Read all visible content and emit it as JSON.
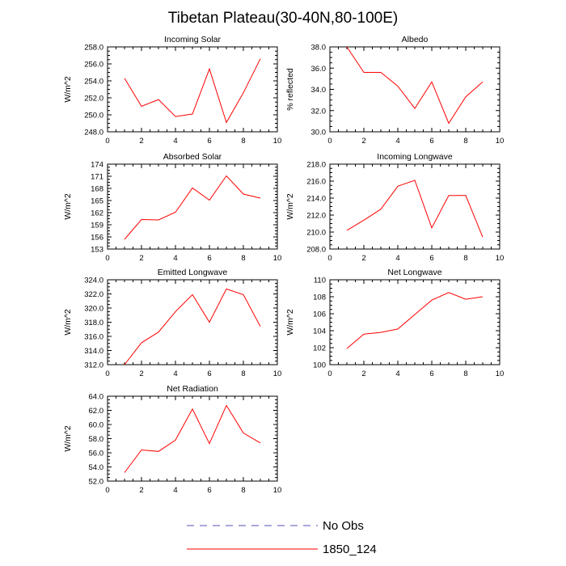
{
  "figure_title": "Tibetan Plateau(30-40N,80-100E)",
  "chart_data": [
    {
      "type": "line",
      "title": "Incoming Solar",
      "ylabel": "W/m^2",
      "xlim": [
        0,
        10
      ],
      "xticks": [
        0,
        2,
        4,
        6,
        8,
        10
      ],
      "ylim": [
        248.0,
        258.0
      ],
      "yticks": [
        248.0,
        250.0,
        252.0,
        254.0,
        256.0,
        258.0
      ],
      "ytick_labels": [
        "248.0",
        "250.0",
        "252.0",
        "254.0",
        "256.0",
        "258.0"
      ],
      "x": [
        1,
        2,
        3,
        4,
        5,
        6,
        7,
        8,
        9
      ],
      "series": [
        {
          "name": "1850_124",
          "values": [
            254.3,
            251.0,
            251.8,
            249.8,
            250.1,
            255.4,
            249.1,
            252.6,
            256.6
          ]
        }
      ]
    },
    {
      "type": "line",
      "title": "Albedo",
      "ylabel": "% reflected",
      "xlim": [
        0,
        10
      ],
      "xticks": [
        0,
        2,
        4,
        6,
        8,
        10
      ],
      "ylim": [
        30.0,
        38.0
      ],
      "yticks": [
        30.0,
        32.0,
        34.0,
        36.0,
        38.0
      ],
      "ytick_labels": [
        "30.0",
        "32.0",
        "34.0",
        "36.0",
        "38.0"
      ],
      "x": [
        1,
        2,
        3,
        4,
        5,
        6,
        7,
        8,
        9
      ],
      "series": [
        {
          "name": "1850_124",
          "values": [
            38.0,
            35.6,
            35.6,
            34.3,
            32.2,
            34.7,
            30.8,
            33.3,
            34.7
          ]
        }
      ]
    },
    {
      "type": "line",
      "title": "Absorbed Solar",
      "ylabel": "W/m^2",
      "xlim": [
        0,
        10
      ],
      "xticks": [
        0,
        2,
        4,
        6,
        8,
        10
      ],
      "ylim": [
        153,
        174
      ],
      "yticks": [
        153,
        156,
        159,
        162,
        165,
        168,
        171,
        174
      ],
      "ytick_labels": [
        "153",
        "156",
        "159",
        "162",
        "165",
        "168",
        "171",
        "174"
      ],
      "x": [
        1,
        2,
        3,
        4,
        5,
        6,
        7,
        8,
        9
      ],
      "series": [
        {
          "name": "1850_124",
          "values": [
            155.4,
            160.3,
            160.2,
            162.1,
            168.1,
            165.1,
            171.1,
            166.6,
            165.6
          ]
        }
      ]
    },
    {
      "type": "line",
      "title": "Incoming Longwave",
      "ylabel": "W/m^2",
      "xlim": [
        0,
        10
      ],
      "xticks": [
        0,
        2,
        4,
        6,
        8,
        10
      ],
      "ylim": [
        208.0,
        218.0
      ],
      "yticks": [
        208.0,
        210.0,
        212.0,
        214.0,
        216.0,
        218.0
      ],
      "ytick_labels": [
        "208.0",
        "210.0",
        "212.0",
        "214.0",
        "216.0",
        "218.0"
      ],
      "x": [
        1,
        2,
        3,
        4,
        5,
        6,
        7,
        8,
        9
      ],
      "series": [
        {
          "name": "1850_124",
          "values": [
            210.2,
            211.4,
            212.7,
            215.4,
            216.1,
            210.5,
            214.3,
            214.3,
            209.4
          ]
        }
      ]
    },
    {
      "type": "line",
      "title": "Emitted Longwave",
      "ylabel": "W/m^2",
      "xlim": [
        0,
        10
      ],
      "xticks": [
        0,
        2,
        4,
        6,
        8,
        10
      ],
      "ylim": [
        312.0,
        324.0
      ],
      "yticks": [
        312.0,
        314.0,
        316.0,
        318.0,
        320.0,
        322.0,
        324.0
      ],
      "ytick_labels": [
        "312.0",
        "314.0",
        "316.0",
        "318.0",
        "320.0",
        "322.0",
        "324.0"
      ],
      "x": [
        1,
        2,
        3,
        4,
        5,
        6,
        7,
        8,
        9
      ],
      "series": [
        {
          "name": "1850_124",
          "values": [
            312.0,
            315.1,
            316.6,
            319.5,
            321.9,
            318.0,
            322.7,
            321.9,
            317.4
          ]
        }
      ]
    },
    {
      "type": "line",
      "title": "Net Longwave",
      "ylabel": "W/m^2",
      "xlim": [
        0,
        10
      ],
      "xticks": [
        0,
        2,
        4,
        6,
        8,
        10
      ],
      "ylim": [
        100,
        110
      ],
      "yticks": [
        100,
        102,
        104,
        106,
        108,
        110
      ],
      "ytick_labels": [
        "100",
        "102",
        "104",
        "106",
        "108",
        "110"
      ],
      "x": [
        1,
        2,
        3,
        4,
        5,
        6,
        7,
        8,
        9
      ],
      "series": [
        {
          "name": "1850_124",
          "values": [
            101.9,
            103.6,
            103.8,
            104.2,
            105.9,
            107.6,
            108.5,
            107.7,
            108.0
          ]
        }
      ]
    },
    {
      "type": "line",
      "title": "Net Radiation",
      "ylabel": "W/m^2",
      "xlim": [
        0,
        10
      ],
      "xticks": [
        0,
        2,
        4,
        6,
        8,
        10
      ],
      "ylim": [
        52.0,
        64.0
      ],
      "yticks": [
        52.0,
        54.0,
        56.0,
        58.0,
        60.0,
        62.0,
        64.0
      ],
      "ytick_labels": [
        "52.0",
        "54.0",
        "56.0",
        "58.0",
        "60.0",
        "62.0",
        "64.0"
      ],
      "x": [
        1,
        2,
        3,
        4,
        5,
        6,
        7,
        8,
        9
      ],
      "series": [
        {
          "name": "1850_124",
          "values": [
            53.2,
            56.4,
            56.2,
            57.8,
            62.2,
            57.3,
            62.7,
            58.8,
            57.4
          ]
        }
      ]
    }
  ],
  "legend": [
    {
      "label": "No Obs",
      "style": "dashed",
      "color": "#5050b4"
    },
    {
      "label": "1850_124",
      "style": "solid",
      "color": "#ff0000"
    }
  ]
}
